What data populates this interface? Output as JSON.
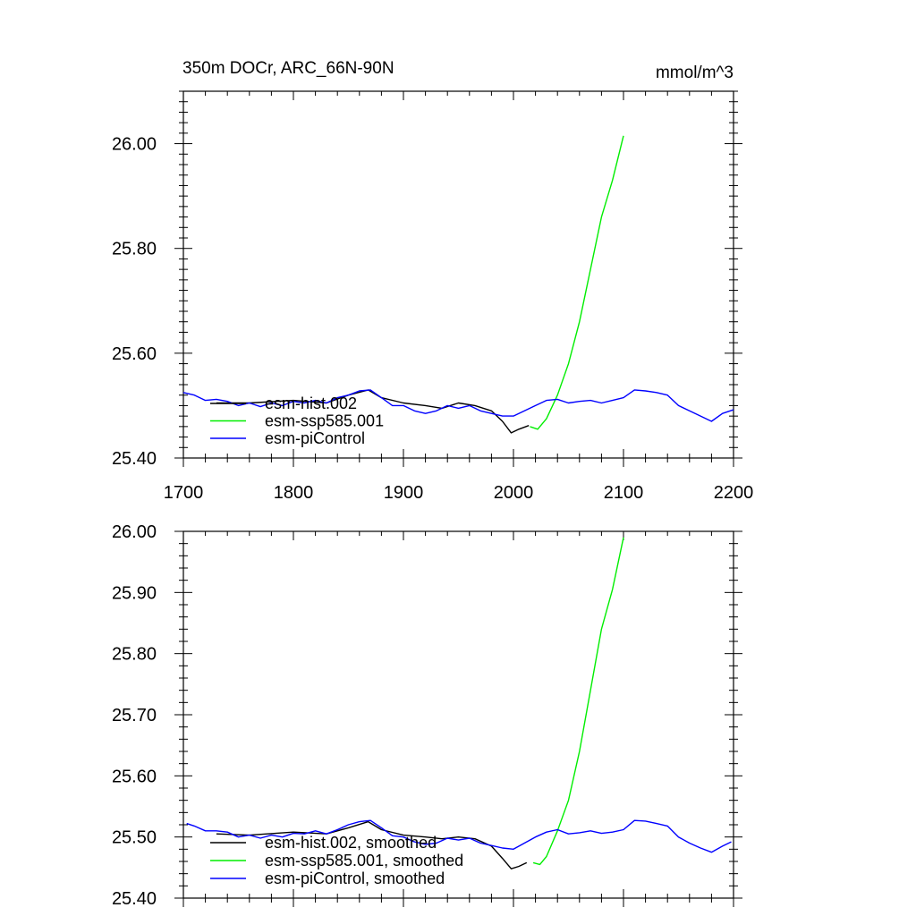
{
  "chart_data": [
    {
      "type": "line",
      "title": "350m DOCr, ARC_66N-90N",
      "units": "mmol/m^3",
      "xlim": [
        1700,
        2200
      ],
      "ylim": [
        25.4,
        26.1
      ],
      "xticks": [
        1700,
        1800,
        1900,
        2000,
        2100,
        2200
      ],
      "xtick_labels": [
        "1700",
        "1800",
        "1900",
        "2000",
        "2100",
        "2200"
      ],
      "yticks": [
        25.4,
        25.6,
        25.8,
        26.0
      ],
      "ytick_labels": [
        "25.40",
        "25.60",
        "25.80",
        "26.00"
      ],
      "legend_position": "bottom-left",
      "series": [
        {
          "name": "esm-hist.002",
          "color": "#000000",
          "x": [
            1730,
            1760,
            1800,
            1830,
            1850,
            1868,
            1880,
            1900,
            1920,
            1935,
            1950,
            1965,
            1980,
            1990,
            1998,
            2005,
            2014
          ],
          "y": [
            25.505,
            25.505,
            25.51,
            25.505,
            25.52,
            25.53,
            25.515,
            25.505,
            25.5,
            25.495,
            25.505,
            25.5,
            25.49,
            25.47,
            25.448,
            25.455,
            25.462
          ]
        },
        {
          "name": "esm-ssp585.001",
          "color": "#00ee00",
          "x": [
            2015,
            2022,
            2030,
            2040,
            2050,
            2060,
            2070,
            2080,
            2090,
            2100
          ],
          "y": [
            25.46,
            25.455,
            25.475,
            25.52,
            25.58,
            25.66,
            25.76,
            25.86,
            25.93,
            26.015
          ]
        },
        {
          "name": "esm-piControl",
          "color": "#0000ff",
          "x": [
            1700,
            1710,
            1720,
            1730,
            1740,
            1750,
            1760,
            1770,
            1780,
            1790,
            1800,
            1810,
            1820,
            1830,
            1840,
            1850,
            1860,
            1870,
            1880,
            1890,
            1900,
            1910,
            1920,
            1930,
            1940,
            1950,
            1960,
            1970,
            1980,
            1990,
            2000,
            2010,
            2020,
            2030,
            2040,
            2050,
            2060,
            2070,
            2080,
            2090,
            2100,
            2110,
            2120,
            2130,
            2140,
            2150,
            2160,
            2170,
            2180,
            2190,
            2200
          ],
          "y": [
            25.525,
            25.52,
            25.51,
            25.512,
            25.508,
            25.5,
            25.505,
            25.498,
            25.505,
            25.5,
            25.508,
            25.505,
            25.51,
            25.505,
            25.515,
            25.52,
            25.528,
            25.53,
            25.515,
            25.5,
            25.5,
            25.49,
            25.485,
            25.49,
            25.5,
            25.495,
            25.5,
            25.49,
            25.485,
            25.48,
            25.48,
            25.49,
            25.5,
            25.51,
            25.512,
            25.505,
            25.508,
            25.51,
            25.505,
            25.51,
            25.515,
            25.53,
            25.528,
            25.525,
            25.52,
            25.5,
            25.49,
            25.48,
            25.47,
            25.485,
            25.492
          ]
        }
      ]
    },
    {
      "type": "line",
      "xlim": [
        1700,
        2200
      ],
      "ylim": [
        25.4,
        26.0
      ],
      "xticks": [
        1700,
        1800,
        1900,
        2000,
        2100,
        2200
      ],
      "yticks": [
        25.4,
        25.5,
        25.6,
        25.7,
        25.8,
        25.9,
        26.0
      ],
      "ytick_labels": [
        "25.40",
        "25.50",
        "25.60",
        "25.70",
        "25.80",
        "25.90",
        "26.00"
      ],
      "legend_position": "bottom-left",
      "series": [
        {
          "name": "esm-hist.002, smoothed",
          "color": "#000000",
          "x": [
            1730,
            1760,
            1800,
            1830,
            1850,
            1868,
            1880,
            1900,
            1920,
            1935,
            1950,
            1965,
            1980,
            1990,
            1998,
            2005,
            2012
          ],
          "y": [
            25.505,
            25.503,
            25.508,
            25.505,
            25.515,
            25.525,
            25.512,
            25.503,
            25.5,
            25.497,
            25.5,
            25.497,
            25.485,
            25.465,
            25.448,
            25.452,
            25.458
          ]
        },
        {
          "name": "esm-ssp585.001, smoothed",
          "color": "#00ee00",
          "x": [
            2018,
            2024,
            2030,
            2040,
            2050,
            2060,
            2070,
            2080,
            2090,
            2100
          ],
          "y": [
            25.458,
            25.455,
            25.468,
            25.51,
            25.56,
            25.64,
            25.74,
            25.84,
            25.905,
            25.99
          ]
        },
        {
          "name": "esm-piControl, smoothed",
          "color": "#0000ff",
          "x": [
            1703,
            1710,
            1720,
            1730,
            1740,
            1750,
            1760,
            1770,
            1780,
            1790,
            1800,
            1810,
            1820,
            1830,
            1840,
            1850,
            1860,
            1870,
            1880,
            1890,
            1900,
            1910,
            1920,
            1930,
            1940,
            1950,
            1960,
            1970,
            1980,
            1990,
            2000,
            2010,
            2020,
            2030,
            2040,
            2050,
            2060,
            2070,
            2080,
            2090,
            2100,
            2110,
            2120,
            2130,
            2140,
            2150,
            2160,
            2170,
            2180,
            2190,
            2198
          ],
          "y": [
            25.522,
            25.518,
            25.51,
            25.51,
            25.508,
            25.5,
            25.503,
            25.498,
            25.503,
            25.5,
            25.506,
            25.505,
            25.51,
            25.505,
            25.512,
            25.52,
            25.525,
            25.527,
            25.515,
            25.502,
            25.5,
            25.492,
            25.488,
            25.49,
            25.498,
            25.495,
            25.498,
            25.49,
            25.486,
            25.482,
            25.48,
            25.49,
            25.5,
            25.508,
            25.512,
            25.505,
            25.507,
            25.51,
            25.506,
            25.508,
            25.512,
            25.527,
            25.526,
            25.522,
            25.518,
            25.5,
            25.49,
            25.482,
            25.475,
            25.485,
            25.492
          ]
        }
      ]
    }
  ]
}
